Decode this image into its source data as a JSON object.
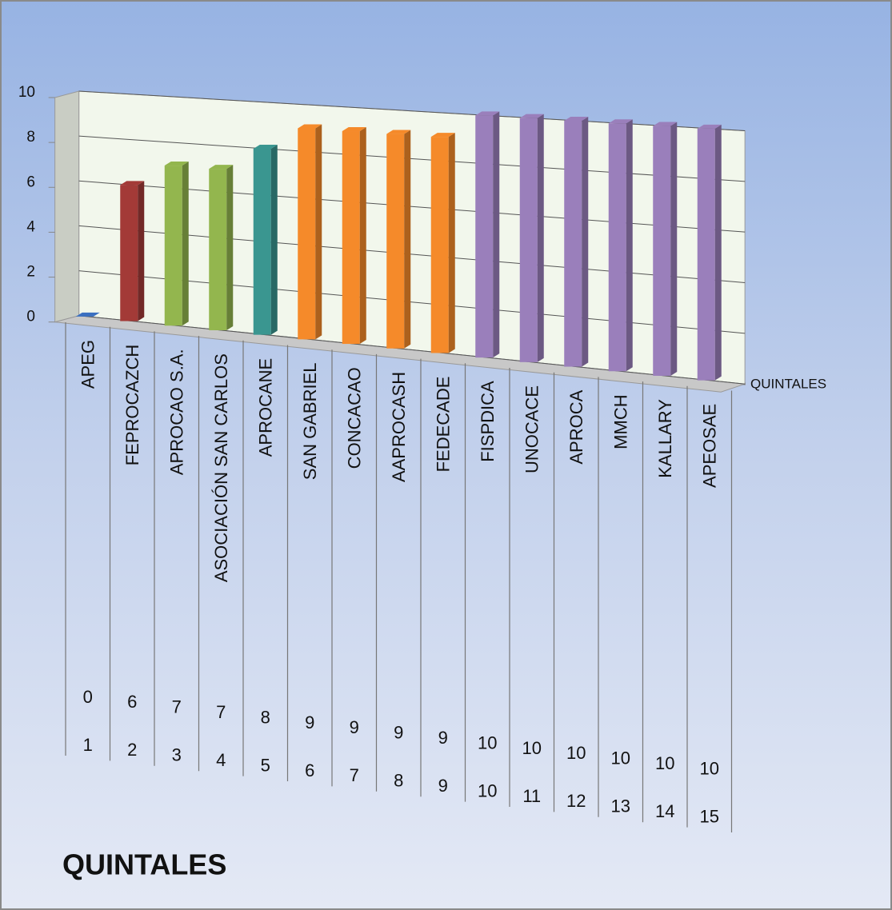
{
  "chart_data": {
    "type": "bar3d",
    "title": "QUINTALES",
    "categories": [
      "APEG",
      "FEPROCAZCH",
      "APROCAO S.A.",
      "ASOCIACIÓN SAN CARLOS",
      "APROCANE",
      "SAN GABRIEL",
      "CONCACAO",
      "AAPROCASH",
      "FEDECADE",
      "FISPDICA",
      "UNOCACE",
      "APROCA",
      "MMCH",
      "KALLARY",
      "APEOSAE"
    ],
    "series": [
      {
        "name": "QUINTALES",
        "colors": [
          "#3a6fc0",
          "#a33a37",
          "#93b64e",
          "#93b64e",
          "#3a9690",
          "#f58a2a",
          "#f58a2a",
          "#f58a2a",
          "#f58a2a",
          "#9a7fbb",
          "#9a7fbb",
          "#9a7fbb",
          "#9a7fbb",
          "#9a7fbb",
          "#9a7fbb"
        ],
        "values": [
          0,
          6,
          7,
          7,
          8,
          9,
          9,
          9,
          9,
          10,
          10,
          10,
          10,
          10,
          10
        ]
      }
    ],
    "index_row": [
      1,
      2,
      3,
      4,
      5,
      6,
      7,
      8,
      9,
      10,
      11,
      12,
      13,
      14,
      15
    ],
    "ylim": [
      0,
      10
    ],
    "yticks": [
      0,
      2,
      4,
      6,
      8,
      10
    ],
    "grid": true
  }
}
